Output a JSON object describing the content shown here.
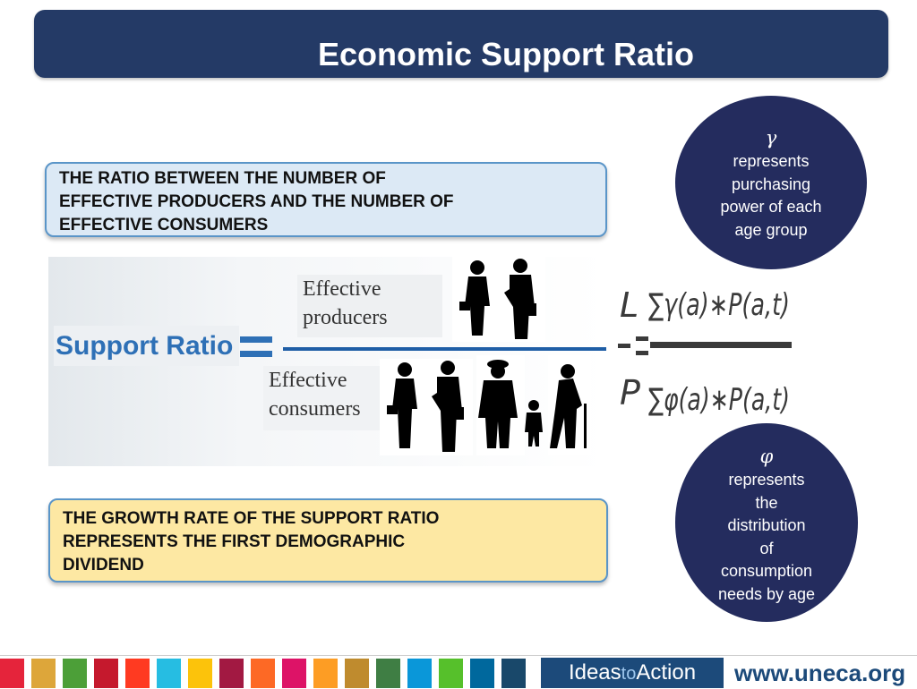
{
  "title": "Economic Support Ratio",
  "top_box": {
    "lines": [
      "THE RATIO BETWEEN THE NUMBER OF",
      "EFFECTIVE PRODUCERS AND THE NUMBER OF",
      "EFFECTIVE CONSUMERS"
    ]
  },
  "bottom_box": {
    "lines": [
      "THE GROWTH RATE OF THE SUPPORT RATIO",
      "REPRESENTS THE FIRST DEMOGRAPHIC",
      "DIVIDEND"
    ]
  },
  "diagram": {
    "support_ratio": "Support Ratio",
    "producers": [
      "Effective",
      "producers"
    ],
    "consumers": [
      "Effective",
      "consumers"
    ]
  },
  "formula": {
    "lhs_num": "L",
    "lhs_den": "P",
    "rhs_num": "∑γ(a)∗P(a,t)",
    "rhs_den": "∑φ(a)∗P(a,t)"
  },
  "gamma_circle": {
    "symbol": "γ",
    "lines": [
      "represents",
      "purchasing",
      "power of each",
      "age group"
    ]
  },
  "phi_circle": {
    "symbol": "φ",
    "lines": [
      "represents",
      "the",
      "distribution",
      "of",
      "consumption",
      "needs by age"
    ]
  },
  "footer": {
    "ideas_a": "Ideas",
    "ideas_to": "to",
    "ideas_b": "Action",
    "url": "www.uneca.org",
    "sdg_colors": [
      "#e5243b",
      "#dda63a",
      "#4c9f38",
      "#c5192d",
      "#ff3a21",
      "#26bde2",
      "#fcc30b",
      "#a21942",
      "#fd6925",
      "#dd1367",
      "#fd9d24",
      "#bf8b2e",
      "#3f7e44",
      "#0a97d9",
      "#56c02b",
      "#00689d",
      "#19486a"
    ]
  },
  "colors": {
    "title_bar": "#243a66",
    "circle": "#242c5e",
    "accent": "#2e70b6"
  }
}
